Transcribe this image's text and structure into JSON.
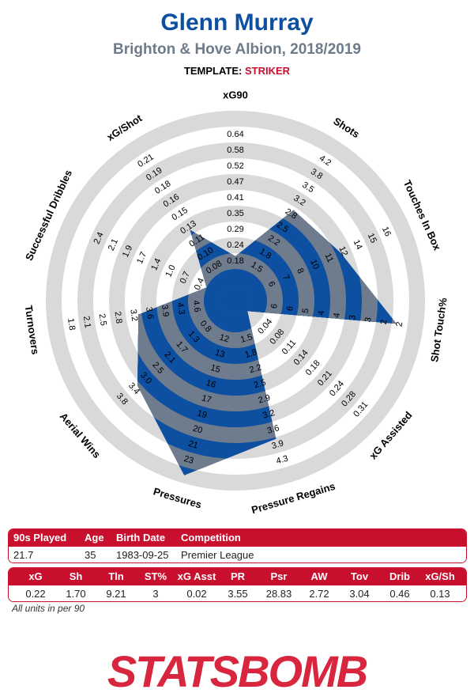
{
  "header": {
    "player_name": "Glenn Murray",
    "team_season": "Brighton & Hove Albion, 2018/2019",
    "template_label": "TEMPLATE:",
    "template_value": "STRIKER"
  },
  "colors": {
    "player_blue": "#0d4fa0",
    "subtitle_grey": "#6e7b8b",
    "accent_red": "#c8102e",
    "ring_grey": "#d9d9d9",
    "polygon_fill": "#6f7c8e"
  },
  "chart_data": {
    "type": "radar",
    "metrics": [
      {
        "name": "xG90",
        "ticks": [
          "0.18",
          "0.24",
          "0.29",
          "0.35",
          "0.41",
          "0.47",
          "0.52",
          "0.58",
          "0.64"
        ],
        "value": 0.22
      },
      {
        "name": "Shots",
        "ticks": [
          "1.5",
          "1.8",
          "2.2",
          "2.5",
          "2.8",
          "3.2",
          "3.5",
          "3.8",
          "4.2"
        ],
        "value": 1.7
      },
      {
        "name": "Touches In Box",
        "ticks": [
          "6",
          "7",
          "8",
          "10",
          "11",
          "12",
          "14",
          "15",
          "16"
        ],
        "value": 9.21
      },
      {
        "name": "Shot Touch%",
        "ticks": [
          "6",
          "6",
          "5",
          "4",
          "4",
          "3",
          "3",
          "2",
          "2"
        ],
        "value": 3
      },
      {
        "name": "xG Assisted",
        "ticks": [
          "0.04",
          "0.08",
          "0.11",
          "0.14",
          "0.18",
          "0.21",
          "0.24",
          "0.28",
          "0.31"
        ],
        "value": 0.02
      },
      {
        "name": "Pressure Regains",
        "ticks": [
          "1.5",
          "1.8",
          "2.2",
          "2.5",
          "2.9",
          "3.2",
          "3.6",
          "3.9",
          "4.3"
        ],
        "value": 3.55
      },
      {
        "name": "Pressures",
        "ticks": [
          "12",
          "13",
          "15",
          "16",
          "17",
          "19",
          "20",
          "21",
          "23"
        ],
        "value": 28.83
      },
      {
        "name": "Aerial Wins",
        "ticks": [
          "0.8",
          "1.3",
          "1.7",
          "2.1",
          "2.5",
          "3.0",
          "3.4",
          "3.8"
        ],
        "value": 2.72
      },
      {
        "name": "Turnovers",
        "ticks": [
          "4.6",
          "4.3",
          "3.9",
          "3.6",
          "3.2",
          "2.8",
          "2.5",
          "2.1",
          "1.8"
        ],
        "value": 3.04
      },
      {
        "name": "Successful Dribbles",
        "ticks": [
          "0.4",
          "0.7",
          "1.0",
          "1.4",
          "1.7",
          "1.9",
          "2.1",
          "2.4"
        ],
        "value": 0.46
      },
      {
        "name": "xG/Shot",
        "ticks": [
          "0.08",
          "0.10",
          "0.11",
          "0.13",
          "0.15",
          "0.16",
          "0.18",
          "0.19",
          "0.21"
        ],
        "value": 0.13
      }
    ],
    "polygon_levels": [
      1.8,
      5.8,
      6.3,
      9.3,
      0,
      8.1,
      10.5,
      7.2,
      5.2,
      1.0,
      4.3
    ]
  },
  "info_table": {
    "headers": [
      "90s Played",
      "Age",
      "Birth Date",
      "Competition"
    ],
    "values": [
      "21.7",
      "35",
      "1983-09-25",
      "Premier League"
    ]
  },
  "stats_table": {
    "headers": [
      "xG",
      "Sh",
      "Tln",
      "ST%",
      "xG Asst",
      "PR",
      "Psr",
      "AW",
      "Tov",
      "Drib",
      "xG/Sh"
    ],
    "values": [
      "0.22",
      "1.70",
      "9.21",
      "3",
      "0.02",
      "3.55",
      "28.83",
      "2.72",
      "3.04",
      "0.46",
      "0.13"
    ]
  },
  "footnote": "All units in per 90",
  "logo": {
    "text": "STATSBOMB",
    "name": "statsbomb-logo"
  }
}
